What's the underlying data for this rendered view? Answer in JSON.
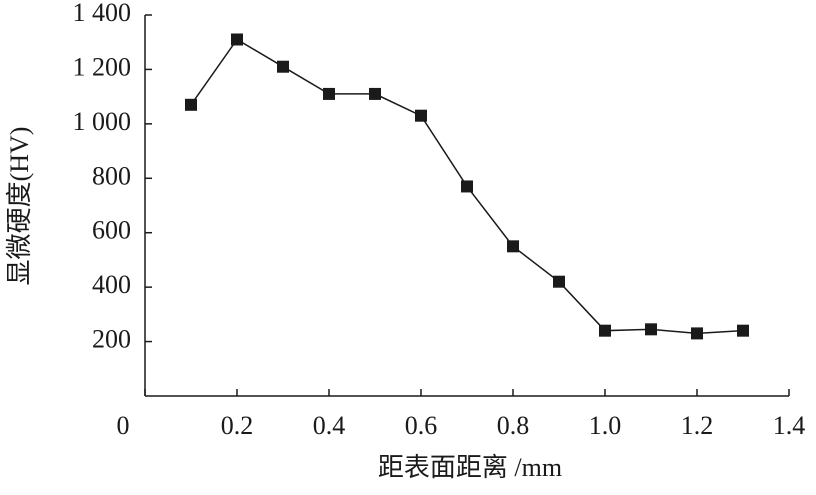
{
  "chart_data": {
    "type": "line",
    "xlabel": "距表面距离 /mm",
    "ylabel": "显微硬度(HV)",
    "x": [
      0.1,
      0.2,
      0.3,
      0.4,
      0.5,
      0.6,
      0.7,
      0.8,
      0.9,
      1.0,
      1.1,
      1.2,
      1.3
    ],
    "series": [
      {
        "color": "#1a1a1a",
        "marker": "square",
        "values": [
          1070,
          1310,
          1210,
          1110,
          1110,
          1030,
          770,
          550,
          420,
          240,
          245,
          230,
          240
        ]
      }
    ],
    "xlim": [
      0,
      1.4
    ],
    "xticks": [
      0,
      0.2,
      0.4,
      0.6,
      0.8,
      {
        "value": 1,
        "label": "1.0"
      },
      1.2,
      1.4
    ],
    "ylim": [
      0,
      1400
    ],
    "yticks": [
      200,
      400,
      600,
      800,
      {
        "value": 1000,
        "label": "1 000"
      },
      {
        "value": 1200,
        "label": "1 200"
      },
      {
        "value": 1400,
        "label": "1 400"
      }
    ],
    "grid": false
  }
}
